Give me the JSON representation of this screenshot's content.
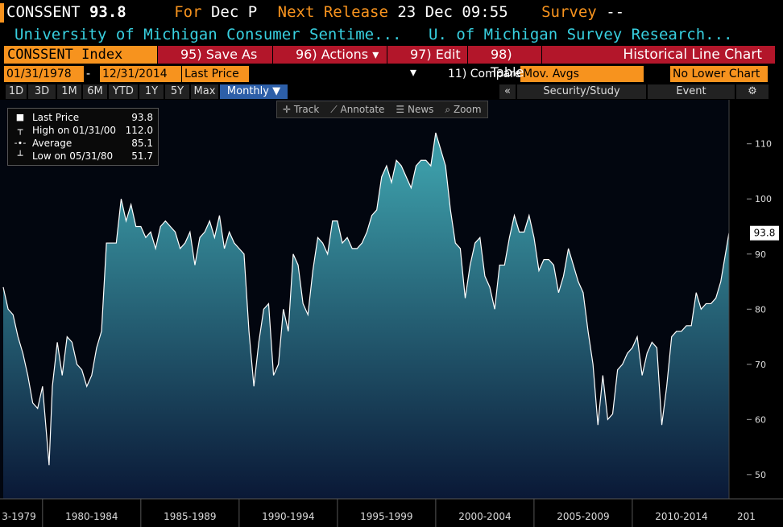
{
  "header": {
    "ticker": "CONSSENT",
    "price": "93.8",
    "for_label": "For",
    "for_value": "Dec P",
    "next_label": "Next Release",
    "next_value": "23 Dec 09:55",
    "survey_label": "Survey",
    "survey_value": "--",
    "name": "University of Michigan Consumer Sentime...",
    "source": "U. of Michigan Survey Research..."
  },
  "toolbar": {
    "security": "CONSSENT Index",
    "buttons": [
      "95) Save As",
      "96) Actions ▾",
      "97) Edit ▾",
      "98) Table"
    ],
    "chart_kind": "Historical Line Chart"
  },
  "range_bar": {
    "start": "01/31/1978",
    "dash": "-",
    "end": "12/31/2014",
    "field": "Last Price",
    "compare": "11) Compare",
    "compare_value": "Mov. Avgs",
    "lower": "No Lower Chart"
  },
  "period_bar": {
    "periods": [
      "1D",
      "3D",
      "1M",
      "6M",
      "YTD",
      "1Y",
      "5Y",
      "Max"
    ],
    "frequency": "Monthly ▼",
    "collapse": "«",
    "study": "Security/Study",
    "event": "Event",
    "gear": "⚙"
  },
  "tools": [
    "✛ Track",
    "⟋ Annotate",
    "☰ News",
    "⌕ Zoom"
  ],
  "legend": [
    {
      "icon": "■",
      "label": "Last Price",
      "value": "93.8"
    },
    {
      "icon": "┬",
      "label": "High on 01/31/00",
      "value": "112.0"
    },
    {
      "icon": "-∙-",
      "label": "Average",
      "value": "85.1"
    },
    {
      "icon": "┴",
      "label": "Low on 05/31/80",
      "value": "51.7"
    }
  ],
  "chart_data": {
    "type": "line",
    "last_label": "93.8",
    "color": "#ffffff",
    "fill_top": "#3b9aa6",
    "fill_bottom": "#0a1836",
    "grid": false,
    "x": [
      1978,
      1978.25,
      1978.5,
      1978.75,
      1979,
      1979.25,
      1979.5,
      1979.75,
      1980,
      1980.333,
      1980.5,
      1980.75,
      1981,
      1981.25,
      1981.5,
      1981.75,
      1982,
      1982.25,
      1982.5,
      1982.75,
      1983,
      1983.25,
      1983.5,
      1983.75,
      1984,
      1984.25,
      1984.5,
      1984.75,
      1985,
      1985.25,
      1985.5,
      1985.75,
      1986,
      1986.25,
      1986.5,
      1986.75,
      1987,
      1987.25,
      1987.5,
      1987.75,
      1988,
      1988.25,
      1988.5,
      1988.75,
      1989,
      1989.25,
      1989.5,
      1989.75,
      1990,
      1990.25,
      1990.5,
      1990.75,
      1991,
      1991.25,
      1991.5,
      1991.75,
      1992,
      1992.25,
      1992.5,
      1992.75,
      1993,
      1993.25,
      1993.5,
      1993.75,
      1994,
      1994.25,
      1994.5,
      1994.75,
      1995,
      1995.25,
      1995.5,
      1995.75,
      1996,
      1996.25,
      1996.5,
      1996.75,
      1997,
      1997.25,
      1997.5,
      1997.75,
      1998,
      1998.25,
      1998.5,
      1998.75,
      1999,
      1999.25,
      1999.5,
      1999.75,
      2000,
      2000.25,
      2000.5,
      2000.75,
      2001,
      2001.25,
      2001.5,
      2001.75,
      2002,
      2002.25,
      2002.5,
      2002.75,
      2003,
      2003.25,
      2003.5,
      2003.75,
      2004,
      2004.25,
      2004.5,
      2004.75,
      2005,
      2005.25,
      2005.5,
      2005.75,
      2006,
      2006.25,
      2006.5,
      2006.75,
      2007,
      2007.25,
      2007.5,
      2007.75,
      2008,
      2008.25,
      2008.5,
      2008.75,
      2009,
      2009.25,
      2009.5,
      2009.75,
      2010,
      2010.25,
      2010.5,
      2010.75,
      2011,
      2011.25,
      2011.5,
      2011.75,
      2012,
      2012.25,
      2012.5,
      2012.75,
      2013,
      2013.25,
      2013.5,
      2013.75,
      2014,
      2014.25,
      2014.5,
      2014.917
    ],
    "values": [
      84,
      80,
      79,
      75,
      72,
      68,
      63,
      62,
      66,
      51.7,
      66,
      74,
      68,
      75,
      74,
      70,
      69,
      66,
      68,
      73,
      76,
      92,
      92,
      92,
      100,
      96,
      99,
      95,
      95,
      93,
      94,
      91,
      95,
      96,
      95,
      94,
      91,
      92,
      94,
      88,
      93,
      94,
      96,
      93,
      97,
      91,
      94,
      92,
      91,
      90,
      76,
      66,
      74,
      80,
      81,
      68,
      70,
      80,
      76,
      90,
      88,
      81,
      79,
      87,
      93,
      92,
      90,
      96,
      96,
      92,
      93,
      91,
      91,
      92,
      94,
      97,
      98,
      104,
      106,
      103,
      107,
      106,
      104,
      102,
      106,
      107,
      107,
      106,
      112,
      109,
      106,
      98,
      92,
      91,
      82,
      88,
      92,
      93,
      86,
      84,
      80,
      88,
      88,
      93,
      97,
      94,
      94,
      97,
      93,
      87,
      89,
      89,
      88,
      83,
      86,
      91,
      88,
      85,
      83,
      76,
      70,
      59,
      68,
      60,
      61,
      69,
      70,
      72,
      73,
      75,
      68,
      72,
      74,
      73,
      59,
      66,
      75,
      76,
      76,
      77,
      77,
      83,
      80,
      81,
      81,
      82,
      85,
      93.8
    ],
    "xlim": [
      1978,
      2014.92
    ],
    "ylim": [
      45.6,
      117.4
    ],
    "yticks": [
      50,
      60,
      70,
      80,
      90,
      100,
      110
    ],
    "xticks": [
      {
        "value": 1975,
        "label": "3-1979"
      },
      {
        "value": 1980,
        "label": "1980-1984"
      },
      {
        "value": 1985,
        "label": "1985-1989"
      },
      {
        "value": 1990,
        "label": "1990-1994"
      },
      {
        "value": 1995,
        "label": "1995-1999"
      },
      {
        "value": 2000,
        "label": "2000-2004"
      },
      {
        "value": 2005,
        "label": "2005-2009"
      },
      {
        "value": 2010,
        "label": "2010-2014"
      },
      {
        "value": 2015,
        "label": "201"
      }
    ]
  }
}
